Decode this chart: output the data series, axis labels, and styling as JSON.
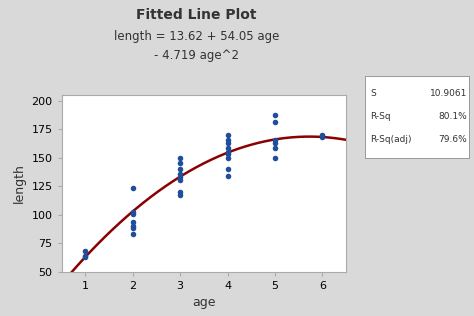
{
  "title": "Fitted Line Plot",
  "line1": "length = 13.62 + 54.05 age",
  "line2": "- 4.719 age^2",
  "xlabel": "age",
  "ylabel": "length",
  "bg_color": "#d9d9d9",
  "plot_bg_color": "#ffffff",
  "curve_color": "#8b0000",
  "dot_color": "#1f4e9c",
  "xlim": [
    0.5,
    6.5
  ],
  "ylim": [
    50,
    205
  ],
  "xticks": [
    1,
    2,
    3,
    4,
    5,
    6
  ],
  "yticks": [
    50,
    75,
    100,
    125,
    150,
    175,
    200
  ],
  "coef": [
    13.62,
    54.05,
    -4.719
  ],
  "scatter_x": [
    1,
    1,
    1,
    2,
    2,
    2,
    2,
    2,
    2,
    2,
    3,
    3,
    3,
    3,
    3,
    3,
    3,
    3,
    4,
    4,
    4,
    4,
    4,
    4,
    4,
    4,
    4,
    5,
    5,
    5,
    5,
    5,
    5,
    6,
    6,
    6
  ],
  "scatter_y": [
    63,
    64,
    68,
    83,
    88,
    90,
    94,
    101,
    102,
    123,
    117,
    120,
    130,
    133,
    136,
    140,
    145,
    150,
    134,
    140,
    150,
    153,
    155,
    158,
    163,
    165,
    170,
    150,
    158,
    163,
    165,
    181,
    187,
    168,
    169,
    170
  ],
  "stats_keys": [
    "S",
    "R-Sq",
    "R-Sq(adj)"
  ],
  "stats_vals": [
    "10.9061",
    "80.1%",
    "79.6%"
  ]
}
